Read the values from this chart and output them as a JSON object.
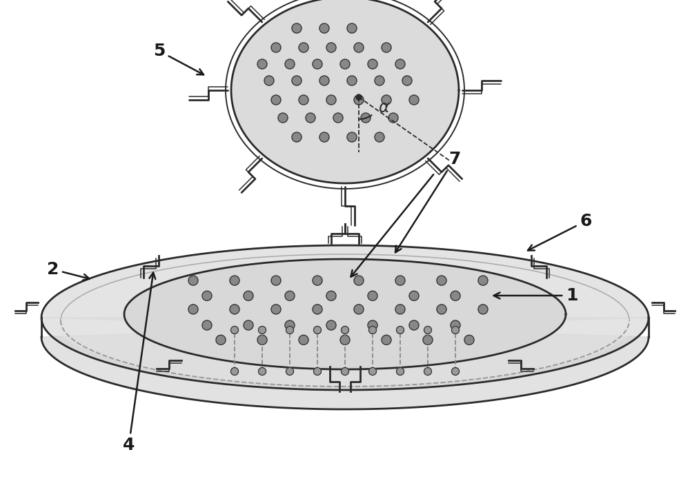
{
  "bg_color": "#ffffff",
  "line_color": "#2a2a2a",
  "dark_line": "#1a1a1a",
  "dashed_color": "#999999",
  "gray_fill_outer": "#d8d8d8",
  "gray_fill_inner": "#c0c0c0",
  "gray_fill_light": "#e8e8e8",
  "dot_color": "#888888",
  "label_fontsize": 18,
  "label_color": "#1a1a1a",
  "arrow_color": "#1a1a1a",
  "lw_main": 1.8,
  "lw_thick": 2.0,
  "lw_rim": 1.4
}
